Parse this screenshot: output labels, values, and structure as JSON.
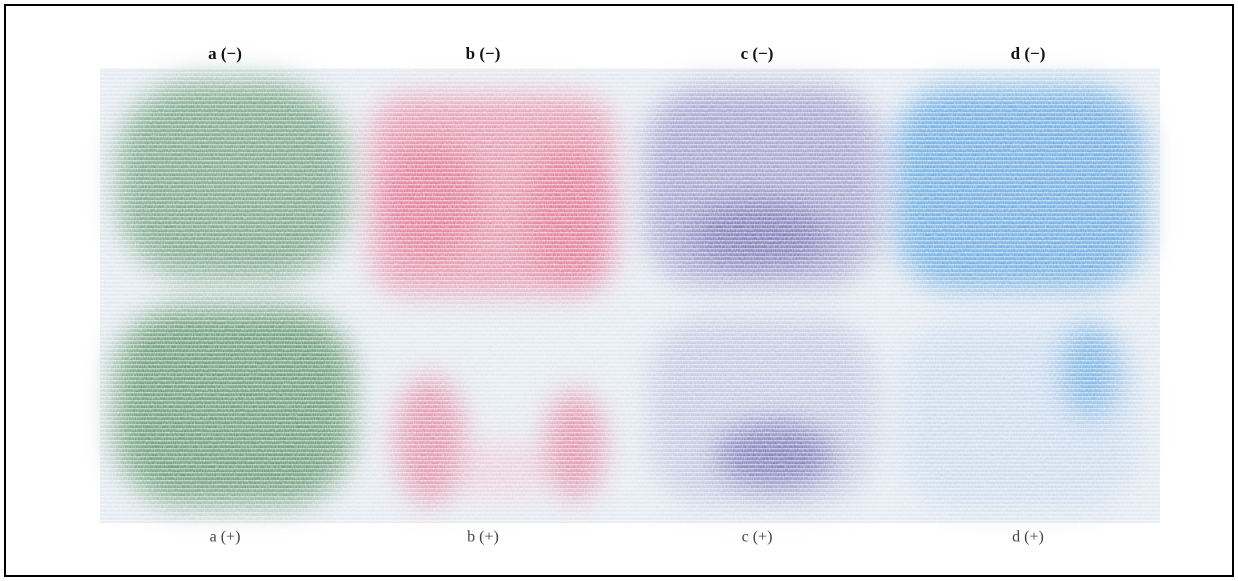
{
  "panels": [
    {
      "top_label": "a (−)",
      "bottom_label": "a (+)"
    },
    {
      "top_label": "b (−)",
      "bottom_label": "b (+)"
    },
    {
      "top_label": "c (−)",
      "bottom_label": "c (+)"
    },
    {
      "top_label": "d (−)",
      "bottom_label": "d (+)"
    }
  ]
}
